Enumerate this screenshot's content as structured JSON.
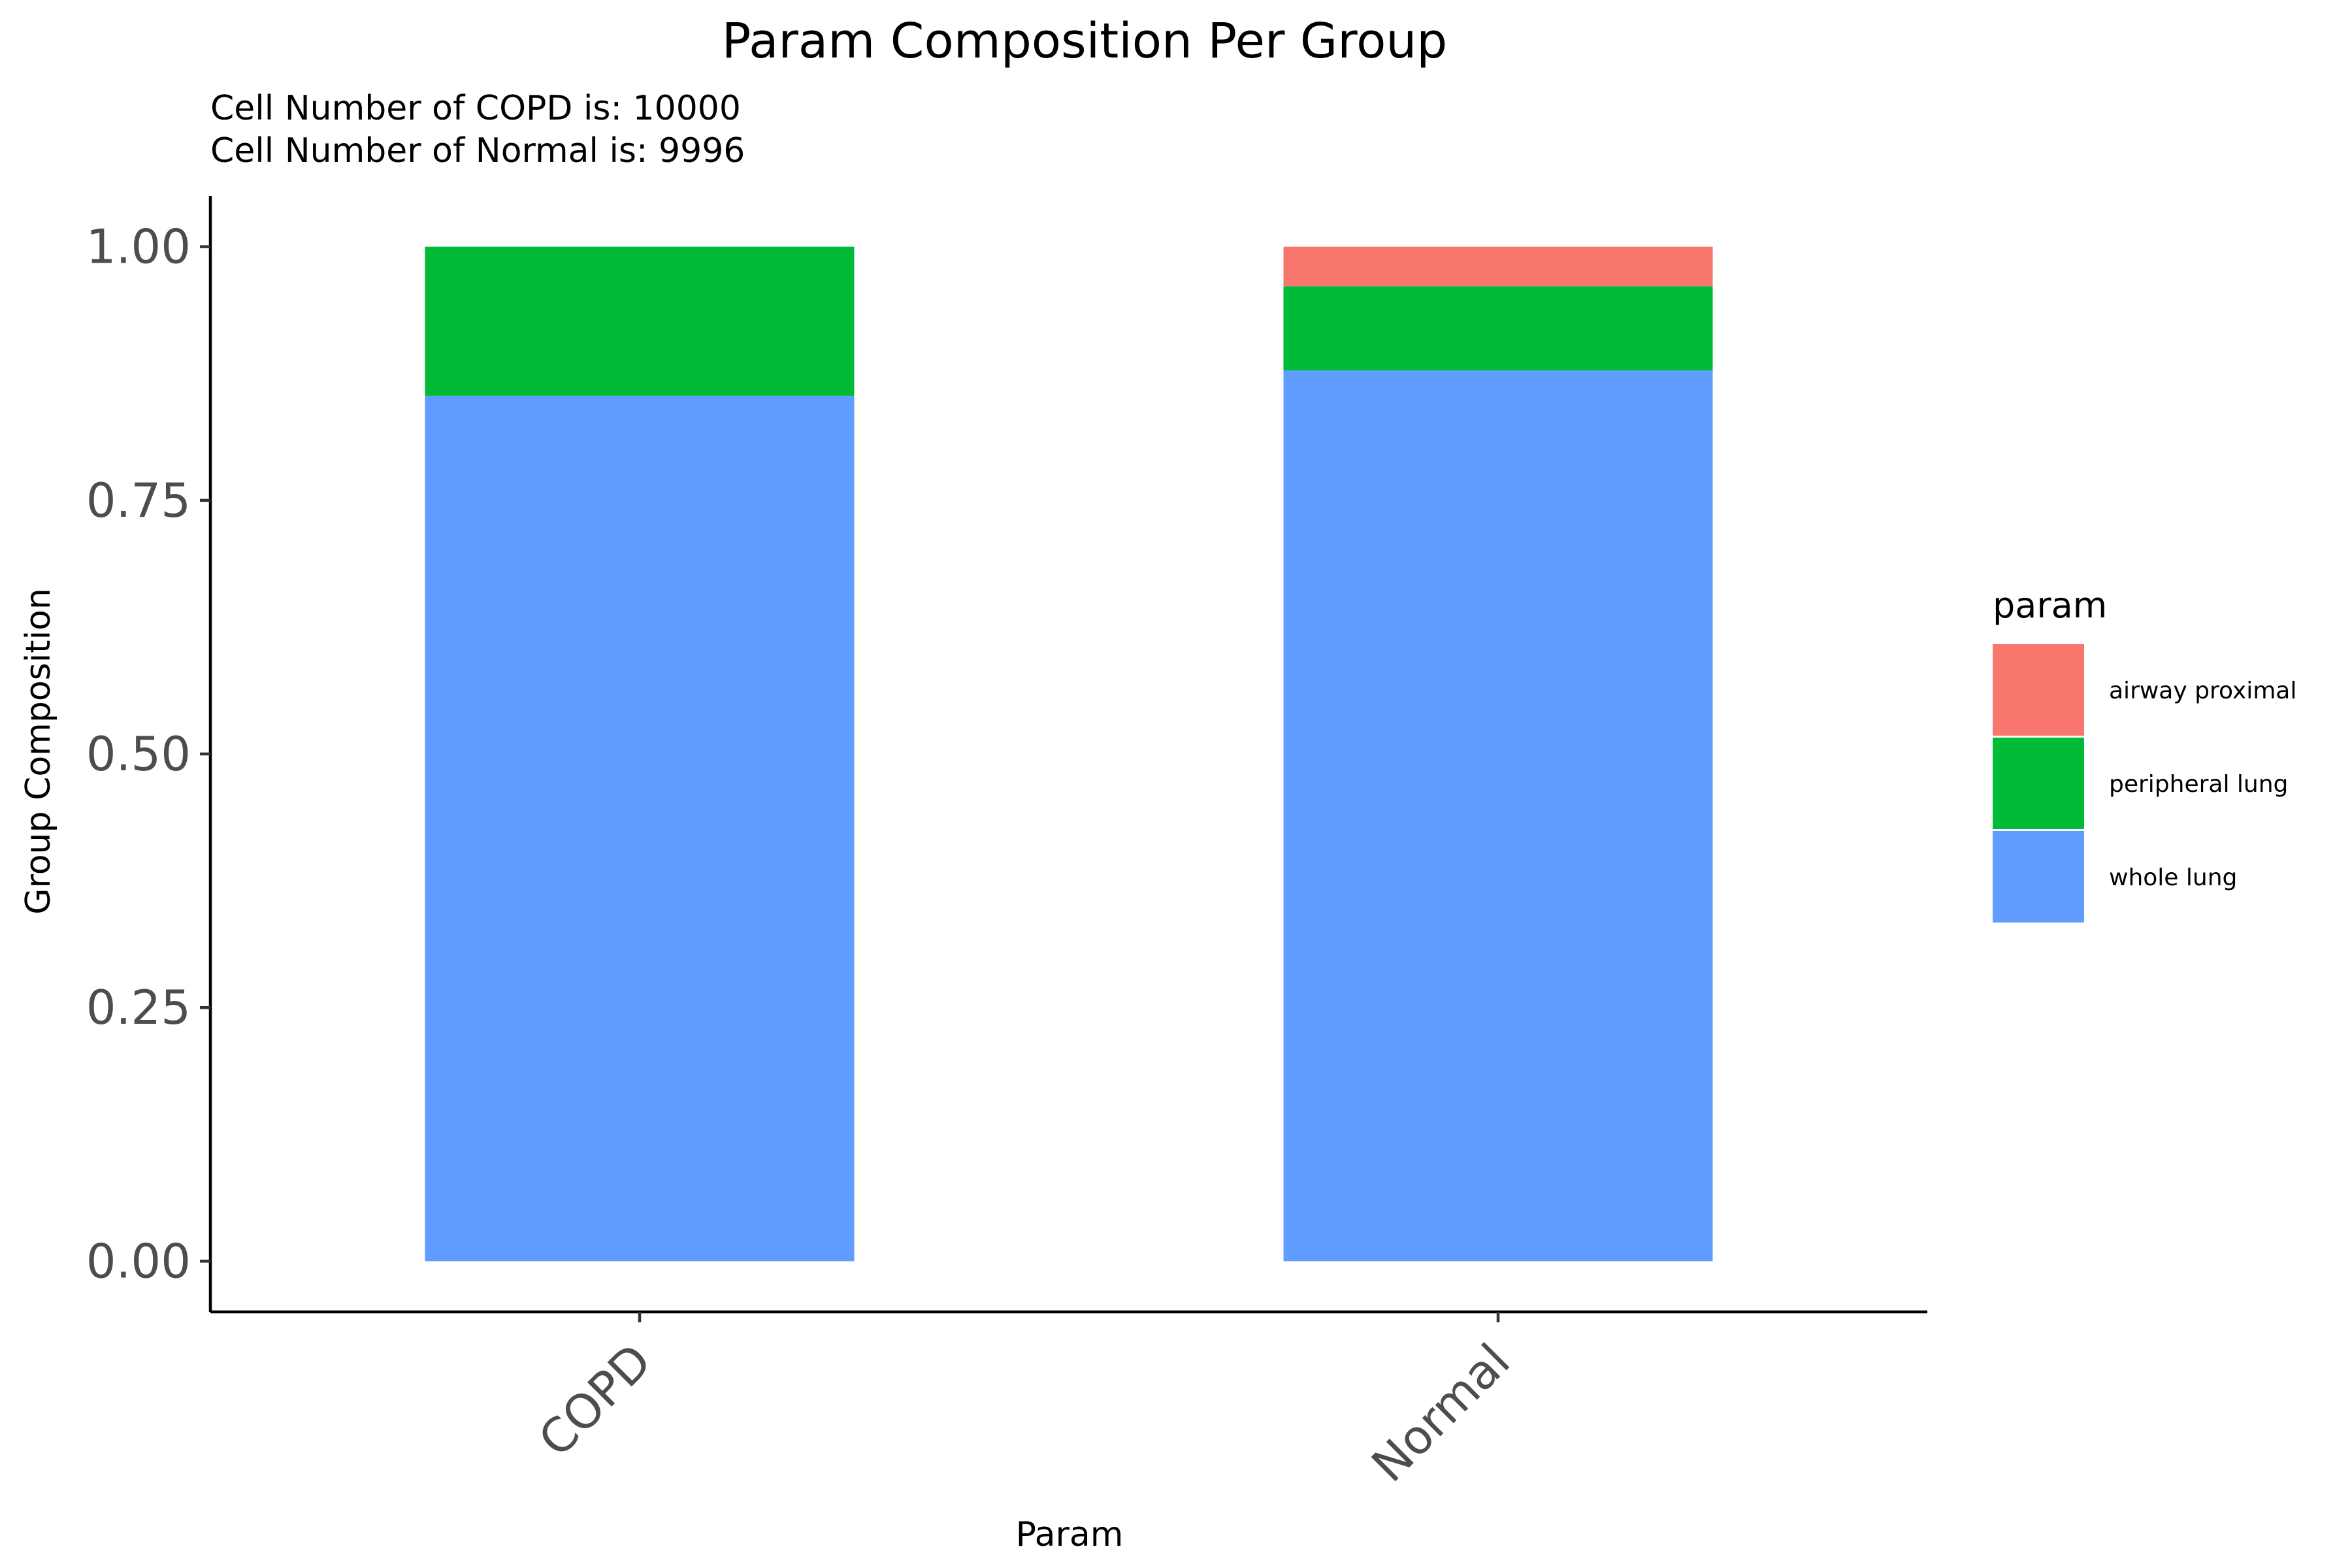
{
  "chart_data": {
    "type": "bar",
    "stacked": true,
    "title": "Param Composition Per Group",
    "subtitle": [
      "Cell Number of COPD is: 10000",
      "Cell Number of Normal is: 9996"
    ],
    "xlabel": "Param",
    "ylabel": "Group Composition",
    "categories": [
      "COPD",
      "Normal"
    ],
    "ylim": [
      -0.05,
      1.05
    ],
    "yticks": [
      0,
      0.25,
      0.5,
      0.75,
      1
    ],
    "ytick_labels": [
      "0.00",
      "0.25",
      "0.50",
      "0.75",
      "1.00"
    ],
    "series": [
      {
        "name": "whole lung",
        "color": "#619CFF",
        "values": [
          0.853,
          0.878
        ]
      },
      {
        "name": "peripheral lung",
        "color": "#00BA38",
        "values": [
          0.147,
          0.083
        ]
      },
      {
        "name": "airway proximal",
        "color": "#F8766D",
        "values": [
          0.0,
          0.039
        ]
      }
    ],
    "legend": {
      "title": "param",
      "position": "right",
      "order": [
        "airway proximal",
        "peripheral lung",
        "whole lung"
      ]
    },
    "grid": false
  }
}
